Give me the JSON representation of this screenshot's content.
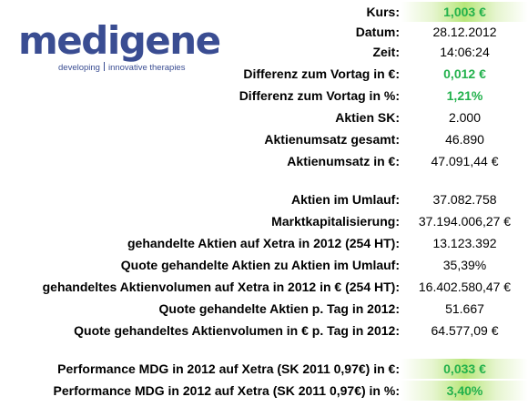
{
  "logo": {
    "wordmark": "medigene",
    "tagline_a": "developing",
    "tagline_b": "innovative therapies"
  },
  "colors": {
    "brand": "#3a4d92",
    "positive": "#22b14c",
    "highlight": "#b8e67a"
  },
  "rows": [
    {
      "label": "Kurs:",
      "value": "1,003 €"
    },
    {
      "label": "Datum:",
      "value": "28.12.2012"
    },
    {
      "label": "Zeit:",
      "value": "14:06:24"
    },
    {
      "label": "Differenz zum Vortag in €:",
      "value": "0,012 €"
    },
    {
      "label": "Differenz zum Vortag in %:",
      "value": "1,21%"
    },
    {
      "label": "Aktien SK:",
      "value": "2.000"
    },
    {
      "label": "Aktienumsatz gesamt:",
      "value": "46.890"
    },
    {
      "label": "Aktienumsatz in €:",
      "value": "47.091,44 €"
    },
    {
      "label": "Aktien im Umlauf:",
      "value": "37.082.758"
    },
    {
      "label": "Marktkapitalisierung:",
      "value": "37.194.006,27 €"
    },
    {
      "label": "gehandelte Aktien auf Xetra in 2012 (254 HT):",
      "value": "13.123.392"
    },
    {
      "label": "Quote gehandelte Aktien zu Aktien im Umlauf:",
      "value": "35,39%"
    },
    {
      "label": "gehandeltes Aktienvolumen auf Xetra in 2012 in € (254 HT):",
      "value": "16.402.580,47 €"
    },
    {
      "label": "Quote gehandelte Aktien p. Tag in 2012:",
      "value": "51.667"
    },
    {
      "label": "Quote gehandeltes Aktienvolumen in € p. Tag in 2012:",
      "value": "64.577,09 €"
    },
    {
      "label": "Performance MDG in 2012 auf Xetra (SK 2011 0,97€) in €:",
      "value": "0,033 €"
    },
    {
      "label": "Performance MDG in 2012 auf Xetra (SK 2011 0,97€) in %:",
      "value": "3,40%"
    }
  ]
}
